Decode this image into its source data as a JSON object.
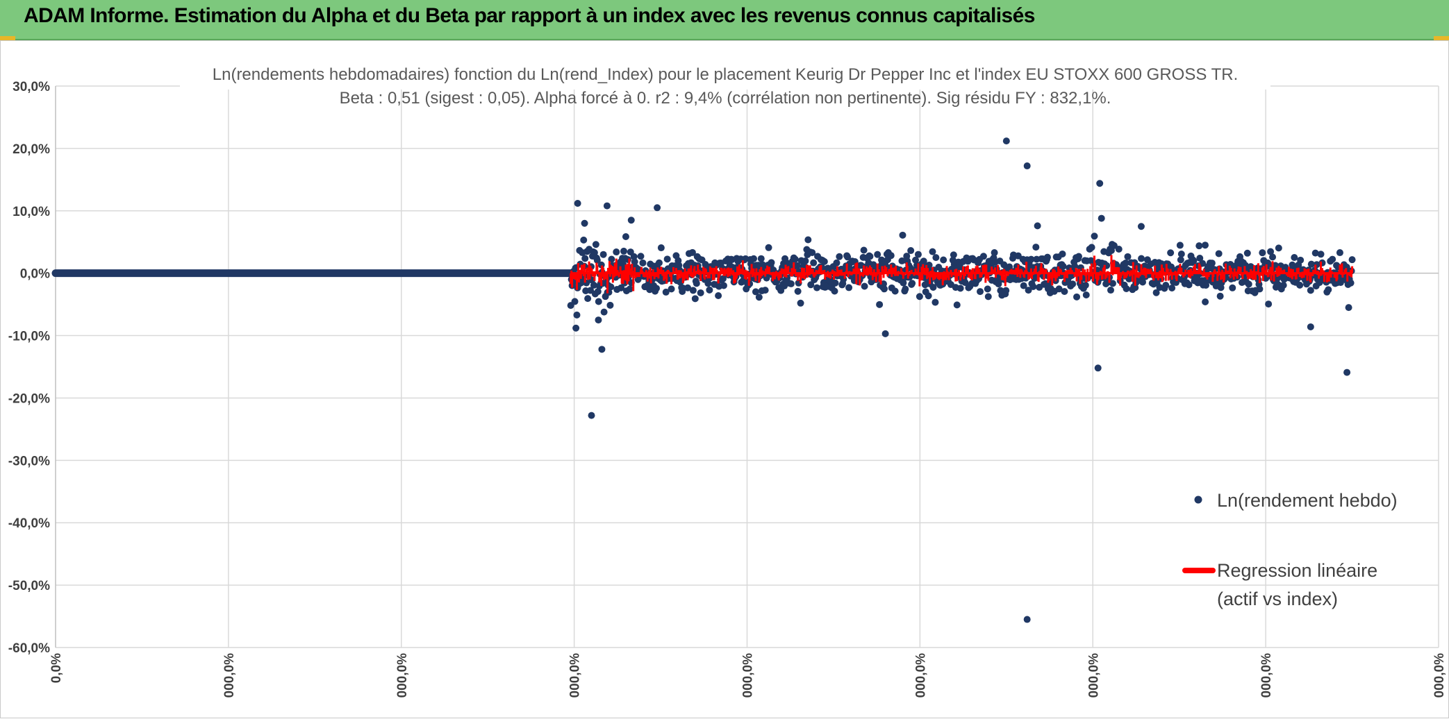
{
  "header": {
    "title": "ADAM Informe. Estimation du Alpha et du Beta par rapport à un index avec les revenus connus capitalisés"
  },
  "colors": {
    "header_bg": "#7dc87d",
    "points": "#203864",
    "regression": "#ff0000",
    "grid": "#d9d9d9",
    "corner": "#e8b628"
  },
  "chart_data": {
    "type": "scatter",
    "title_line1": "Ln(rendements hebdomadaires) fonction du Ln(rend_Index) pour le placement Keurig Dr Pepper Inc et l'index EU STOXX 600 GROSS TR.",
    "title_line2": "Beta : 0,51 (sigest : 0,05). Alpha forcé à 0. r2 : 9,4% (corrélation non pertinente). Sig résidu FY : 832,1%.",
    "ylim": [
      -60,
      30
    ],
    "yticks": [
      30,
      20,
      10,
      0,
      -10,
      -20,
      -30,
      -40,
      -50,
      -60
    ],
    "ytick_labels": [
      "30,0%",
      "20,0%",
      "10,0%",
      "0,0%",
      "-10,0%",
      "-20,0%",
      "-30,0%",
      "-40,0%",
      "-50,0%",
      "-60,0%"
    ],
    "xlim": [
      0,
      8
    ],
    "xticks": [
      0,
      1,
      2,
      3,
      4,
      5,
      6,
      7,
      8
    ],
    "xtick_labels": [
      "0,0%",
      "000,0%",
      "000,0%",
      "000,0%",
      "000,0%",
      "000,0%",
      "000,0%",
      "000,0%",
      "000,0%"
    ],
    "grid": true,
    "legend_position": "right",
    "series": [
      {
        "name": "Ln(rendement hebdo)",
        "kind": "scatter",
        "zero_run": [
          0,
          2.98
        ],
        "active_range": [
          2.98,
          7.5
        ],
        "outliers": [
          {
            "x": 3.02,
            "y": 11.2
          },
          {
            "x": 3.06,
            "y": 8.0
          },
          {
            "x": 3.1,
            "y": -22.8
          },
          {
            "x": 3.16,
            "y": -12.2
          },
          {
            "x": 3.19,
            "y": 10.8
          },
          {
            "x": 3.33,
            "y": 8.5
          },
          {
            "x": 3.48,
            "y": 10.5
          },
          {
            "x": 3.01,
            "y": -8.8
          },
          {
            "x": 3.14,
            "y": -7.5
          },
          {
            "x": 5.5,
            "y": 21.2
          },
          {
            "x": 5.62,
            "y": 17.2
          },
          {
            "x": 5.62,
            "y": -55.5
          },
          {
            "x": 5.68,
            "y": 7.6
          },
          {
            "x": 6.04,
            "y": 14.4
          },
          {
            "x": 6.05,
            "y": 8.8
          },
          {
            "x": 6.03,
            "y": -15.2
          },
          {
            "x": 4.8,
            "y": -9.7
          },
          {
            "x": 6.28,
            "y": 7.5
          },
          {
            "x": 7.26,
            "y": -8.6
          },
          {
            "x": 7.47,
            "y": -15.9
          },
          {
            "x": 7.48,
            "y": -5.5
          },
          {
            "x": 4.9,
            "y": 6.1
          },
          {
            "x": 6.65,
            "y": 4.5
          }
        ]
      },
      {
        "name": "Regression linéaire\n(actif vs index)",
        "kind": "regression",
        "beta": 0.51
      }
    ]
  },
  "legend": {
    "item1": "Ln(rendement hebdo)",
    "item2_line1": "Regression linéaire",
    "item2_line2": "(actif vs index)"
  }
}
